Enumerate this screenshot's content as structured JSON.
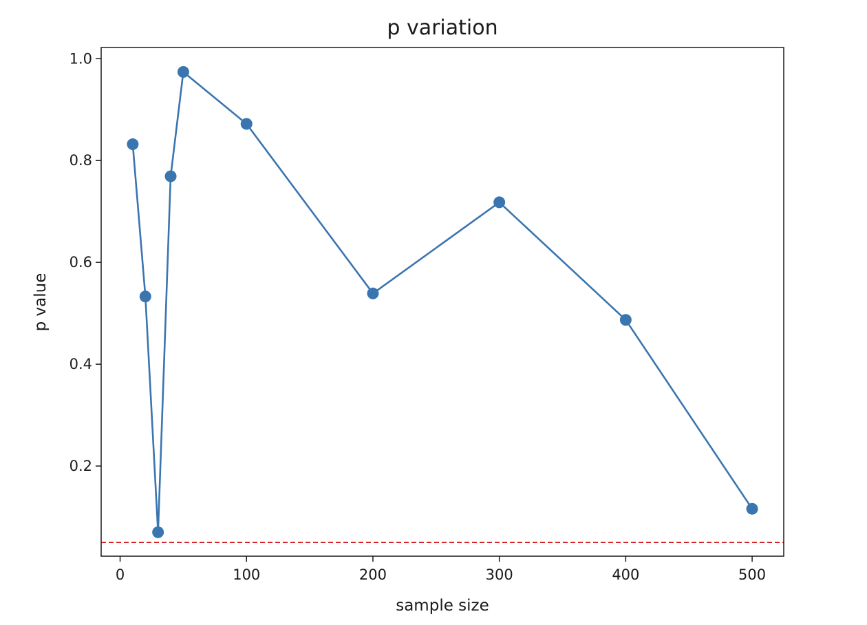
{
  "chart_data": {
    "type": "line",
    "title": "p variation",
    "xlabel": "sample size",
    "ylabel": "p value",
    "xlim": [
      -15,
      525
    ],
    "ylim": [
      0.023,
      1.022
    ],
    "x_ticks": [
      0,
      100,
      200,
      300,
      400,
      500
    ],
    "x_tick_labels": [
      "0",
      "100",
      "200",
      "300",
      "400",
      "500"
    ],
    "y_ticks": [
      0.2,
      0.4,
      0.6,
      0.8,
      1.0
    ],
    "y_tick_labels": [
      "0.2",
      "0.4",
      "0.6",
      "0.8",
      "1.0"
    ],
    "grid": false,
    "series": [
      {
        "x": [
          10,
          20,
          30,
          40,
          50,
          100,
          200,
          300,
          400,
          500
        ],
        "y": [
          0.832,
          0.533,
          0.07,
          0.769,
          0.974,
          0.872,
          0.539,
          0.718,
          0.487,
          0.116
        ],
        "color": "#3a75b0",
        "marker": "circle"
      }
    ],
    "reference_line": {
      "y": 0.05,
      "color": "#d62728",
      "style": "dashed"
    }
  }
}
